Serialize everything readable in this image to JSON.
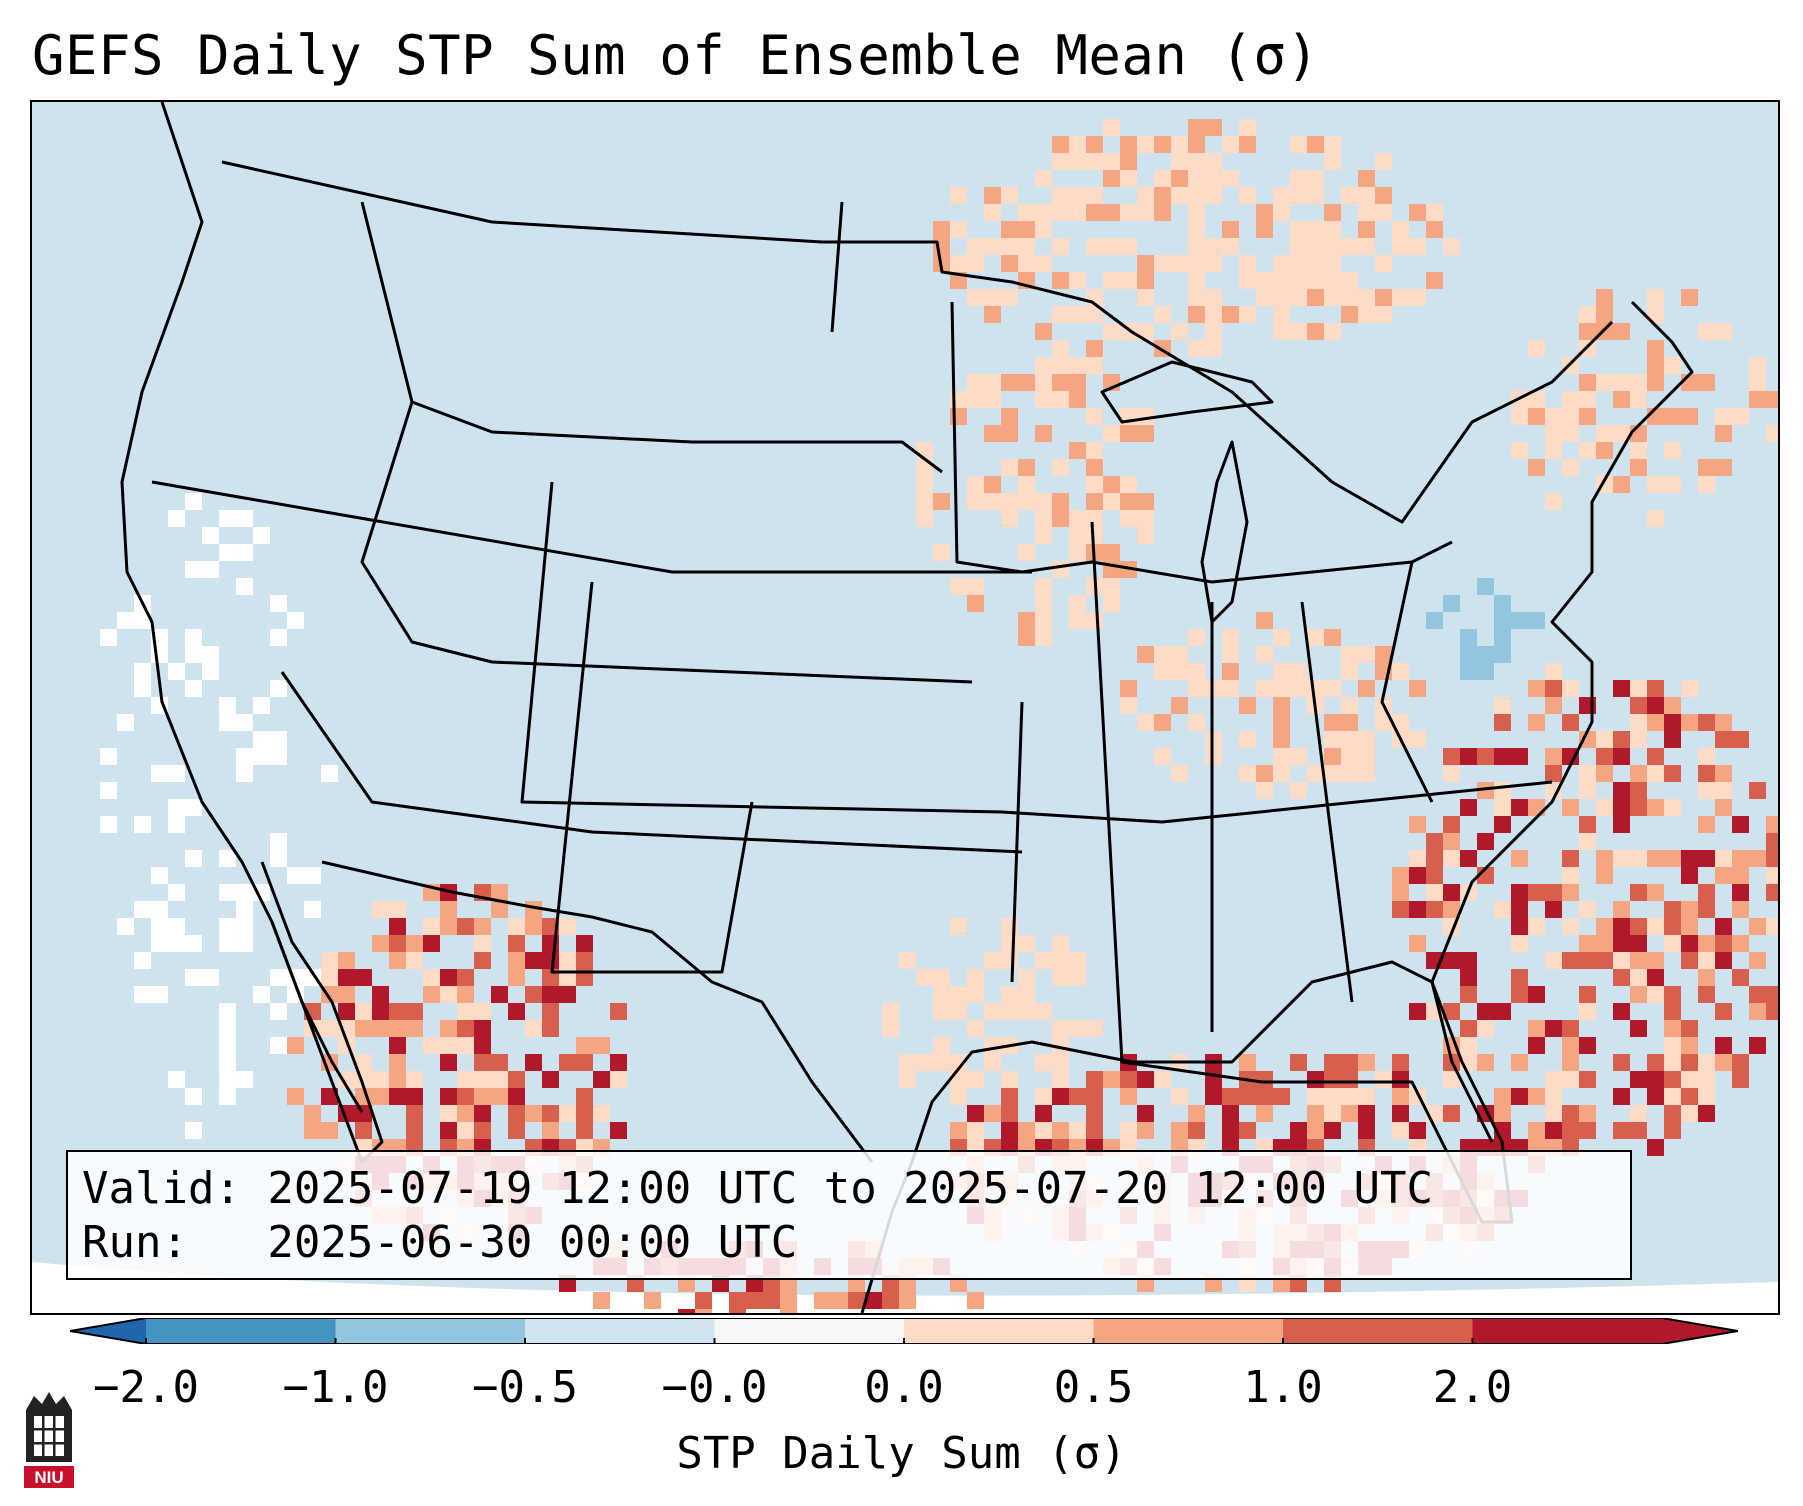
{
  "title": "GEFS Daily STP Sum of Ensemble Mean (σ)",
  "info": {
    "valid_line": "Valid: 2025-07-19 12:00 UTC to 2025-07-20 12:00 UTC",
    "run_line": "Run:   2025-06-30 00:00 UTC"
  },
  "colorbar": {
    "label": "STP Daily Sum (σ)",
    "ticks": [
      "−2.0",
      "−1.0",
      "−0.5",
      "−0.0",
      "0.0",
      "0.5",
      "1.0",
      "2.0"
    ],
    "colors": [
      "#4393c3",
      "#92c5de",
      "#d1e5f0",
      "#f7f7f7",
      "#fddbc7",
      "#f4a582",
      "#d6604d",
      "#b2182b"
    ],
    "extend_low_color": "#2166ac",
    "extend_high_color": "#b2182b"
  },
  "logo": {
    "text": "NIU",
    "color": "#c8102e"
  },
  "map": {
    "background_color": "#cfe3ef",
    "ocean_edge_color": "#ffffff"
  }
}
